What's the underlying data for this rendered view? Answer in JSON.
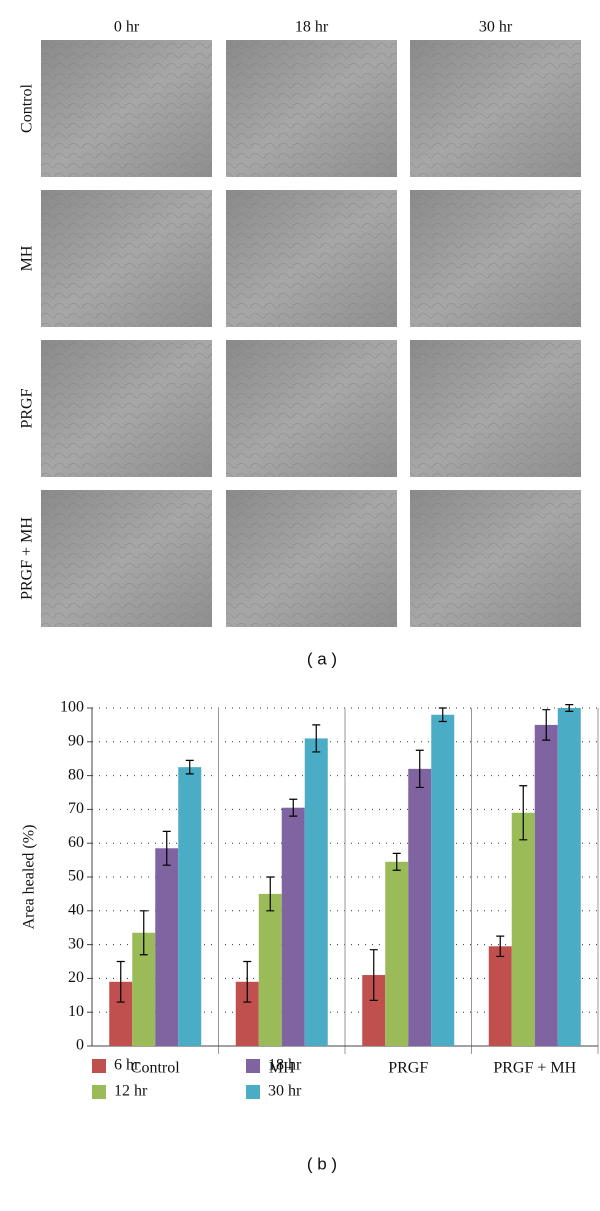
{
  "panel_a": {
    "column_labels": [
      "0 hr",
      "18 hr",
      "30 hr"
    ],
    "row_labels": [
      "Control",
      "MH",
      "PRGF",
      "PRGF + MH"
    ],
    "caption": "( a )"
  },
  "chart_data": {
    "type": "bar",
    "y_label": "Area healed (%)",
    "caption": "( b )",
    "categories": [
      "Control",
      "MH",
      "PRGF",
      "PRGF + MH"
    ],
    "series": [
      {
        "name": "6 hr",
        "color": "#c0504d",
        "values": [
          19,
          19,
          21,
          29.5
        ],
        "errors": [
          6,
          6,
          7.5,
          3
        ]
      },
      {
        "name": "12 hr",
        "color": "#9bbb59",
        "values": [
          33.5,
          45,
          54.5,
          69
        ],
        "errors": [
          6.5,
          5,
          2.5,
          8
        ]
      },
      {
        "name": "18 hr",
        "color": "#8064a2",
        "values": [
          58.5,
          70.5,
          82,
          95
        ],
        "errors": [
          5,
          2.5,
          5.5,
          4.5
        ]
      },
      {
        "name": "30 hr",
        "color": "#4bacc6",
        "values": [
          82.5,
          91,
          98,
          100
        ],
        "errors": [
          2,
          4,
          2,
          1
        ]
      }
    ],
    "ylim": [
      0,
      100
    ],
    "yticks": [
      0,
      10,
      20,
      30,
      40,
      50,
      60,
      70,
      80,
      90,
      100
    ],
    "grid": true,
    "legend": "bottom"
  }
}
